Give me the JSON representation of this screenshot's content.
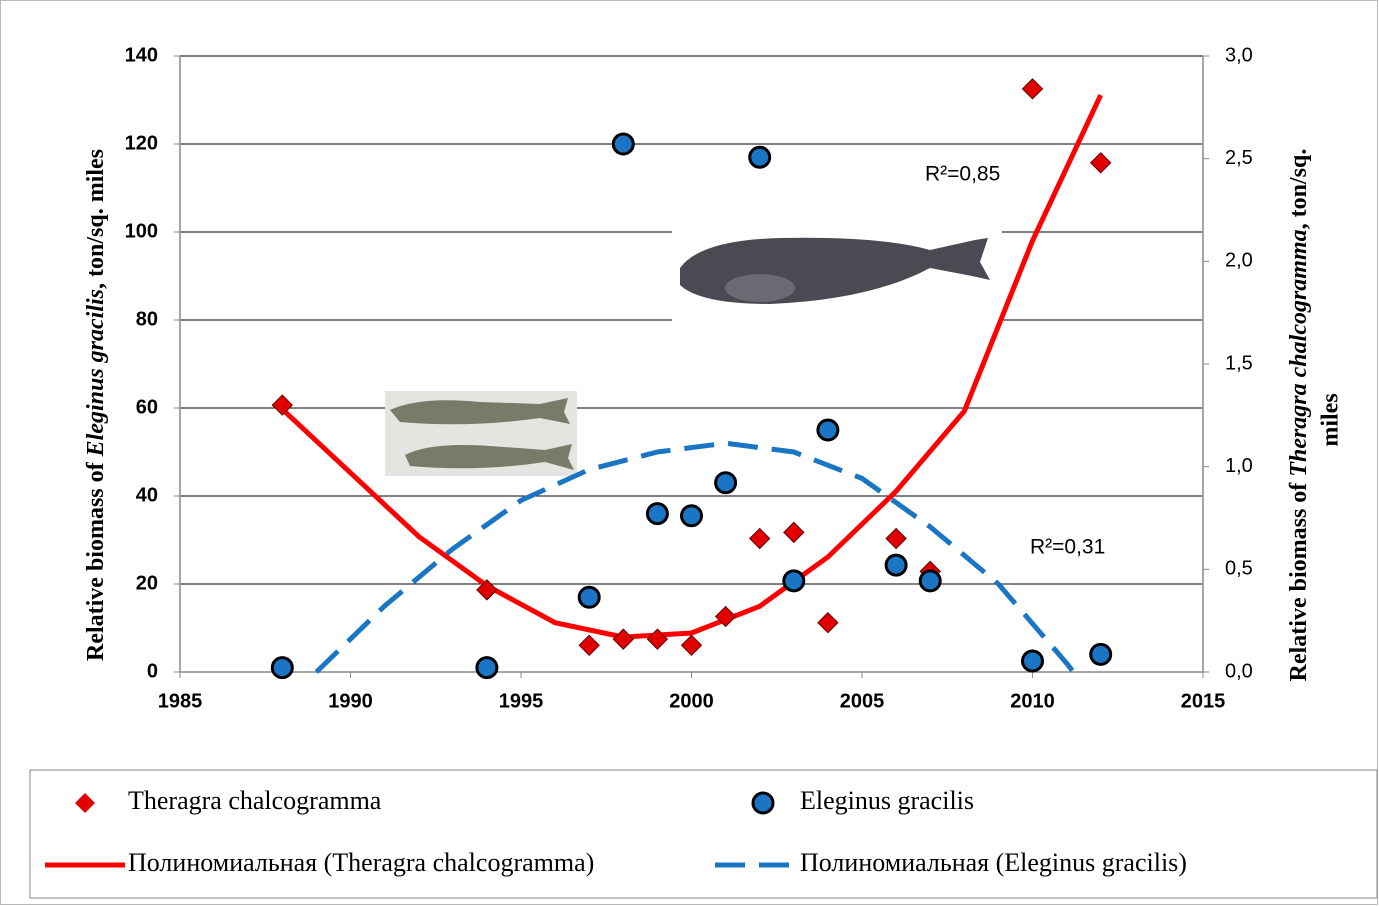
{
  "chart_data": {
    "type": "scatter",
    "ylabel": [
      "Relative biomass of ",
      "Eleginus gracilis",
      ", ton/sq. miles"
    ],
    "y2label": [
      "Relative biomass of ",
      "Theragra chalcogramma",
      ", ton/sq.",
      "miles"
    ],
    "xlim": [
      1985,
      2015
    ],
    "xticks": [
      1985,
      1990,
      1995,
      2000,
      2005,
      2010,
      2015
    ],
    "ylim": [
      0,
      140
    ],
    "yticks": [
      0,
      20,
      40,
      60,
      80,
      100,
      120,
      140
    ],
    "y2lim": [
      0,
      3
    ],
    "y2ticks": [
      {
        "value": 0,
        "label": "0,0"
      },
      {
        "value": 0.5,
        "label": "0,5"
      },
      {
        "value": 1,
        "label": "1,0"
      },
      {
        "value": 1.5,
        "label": "1,5"
      },
      {
        "value": 2,
        "label": "2,0"
      },
      {
        "value": 2.5,
        "label": "2,5"
      },
      {
        "value": 3,
        "label": "3,0"
      }
    ],
    "grid": true,
    "series": [
      {
        "name": "Theragra chalcogramma",
        "color": "#e00000",
        "marker": "diamond",
        "axis": "y2",
        "x": [
          1988,
          1994,
          1997,
          1998,
          1999,
          2000,
          2001,
          2002,
          2003,
          2004,
          2006,
          2007,
          2010,
          2012
        ],
        "values": [
          1.3,
          0.4,
          0.13,
          0.16,
          0.16,
          0.13,
          0.27,
          0.65,
          0.68,
          0.24,
          0.65,
          0.49,
          2.84,
          2.48
        ]
      },
      {
        "name": "Eleginus gracilis",
        "color": "#1a75c4",
        "marker": "circle",
        "x": [
          1988,
          1994,
          1997,
          1998,
          1999,
          2000,
          2001,
          2002,
          2003,
          2004,
          2006,
          2007,
          2010,
          2012
        ],
        "values": [
          1,
          1,
          17,
          120,
          36,
          35.5,
          43,
          117,
          20.7,
          55,
          24.3,
          20.7,
          2.5,
          4
        ]
      },
      {
        "name": "Полиномиальная (Theragra chalcogramma)",
        "color": "#ff0000",
        "line": "solid",
        "axis": "y2",
        "x": [
          1988,
          1990,
          1992,
          1994,
          1996,
          1998,
          2000,
          2002,
          2004,
          2006,
          2008,
          2010,
          2012
        ],
        "values": [
          1.28,
          0.97,
          0.66,
          0.42,
          0.24,
          0.17,
          0.19,
          0.32,
          0.56,
          0.88,
          1.27,
          2.1,
          2.81
        ]
      },
      {
        "name": "Полиномиальная (Eleginus gracilis)",
        "color": "#1a75c4",
        "line": "dashed",
        "x": [
          1989,
          1991,
          1993,
          1995,
          1997,
          1999,
          2001,
          2003,
          2005,
          2007,
          2009,
          2011,
          2011.2
        ],
        "values": [
          0,
          15,
          28,
          39,
          46,
          50,
          52,
          50,
          44,
          33,
          20,
          2,
          0
        ]
      }
    ],
    "annotations": [
      "R²=0,85",
      "R²=0,31"
    ]
  }
}
